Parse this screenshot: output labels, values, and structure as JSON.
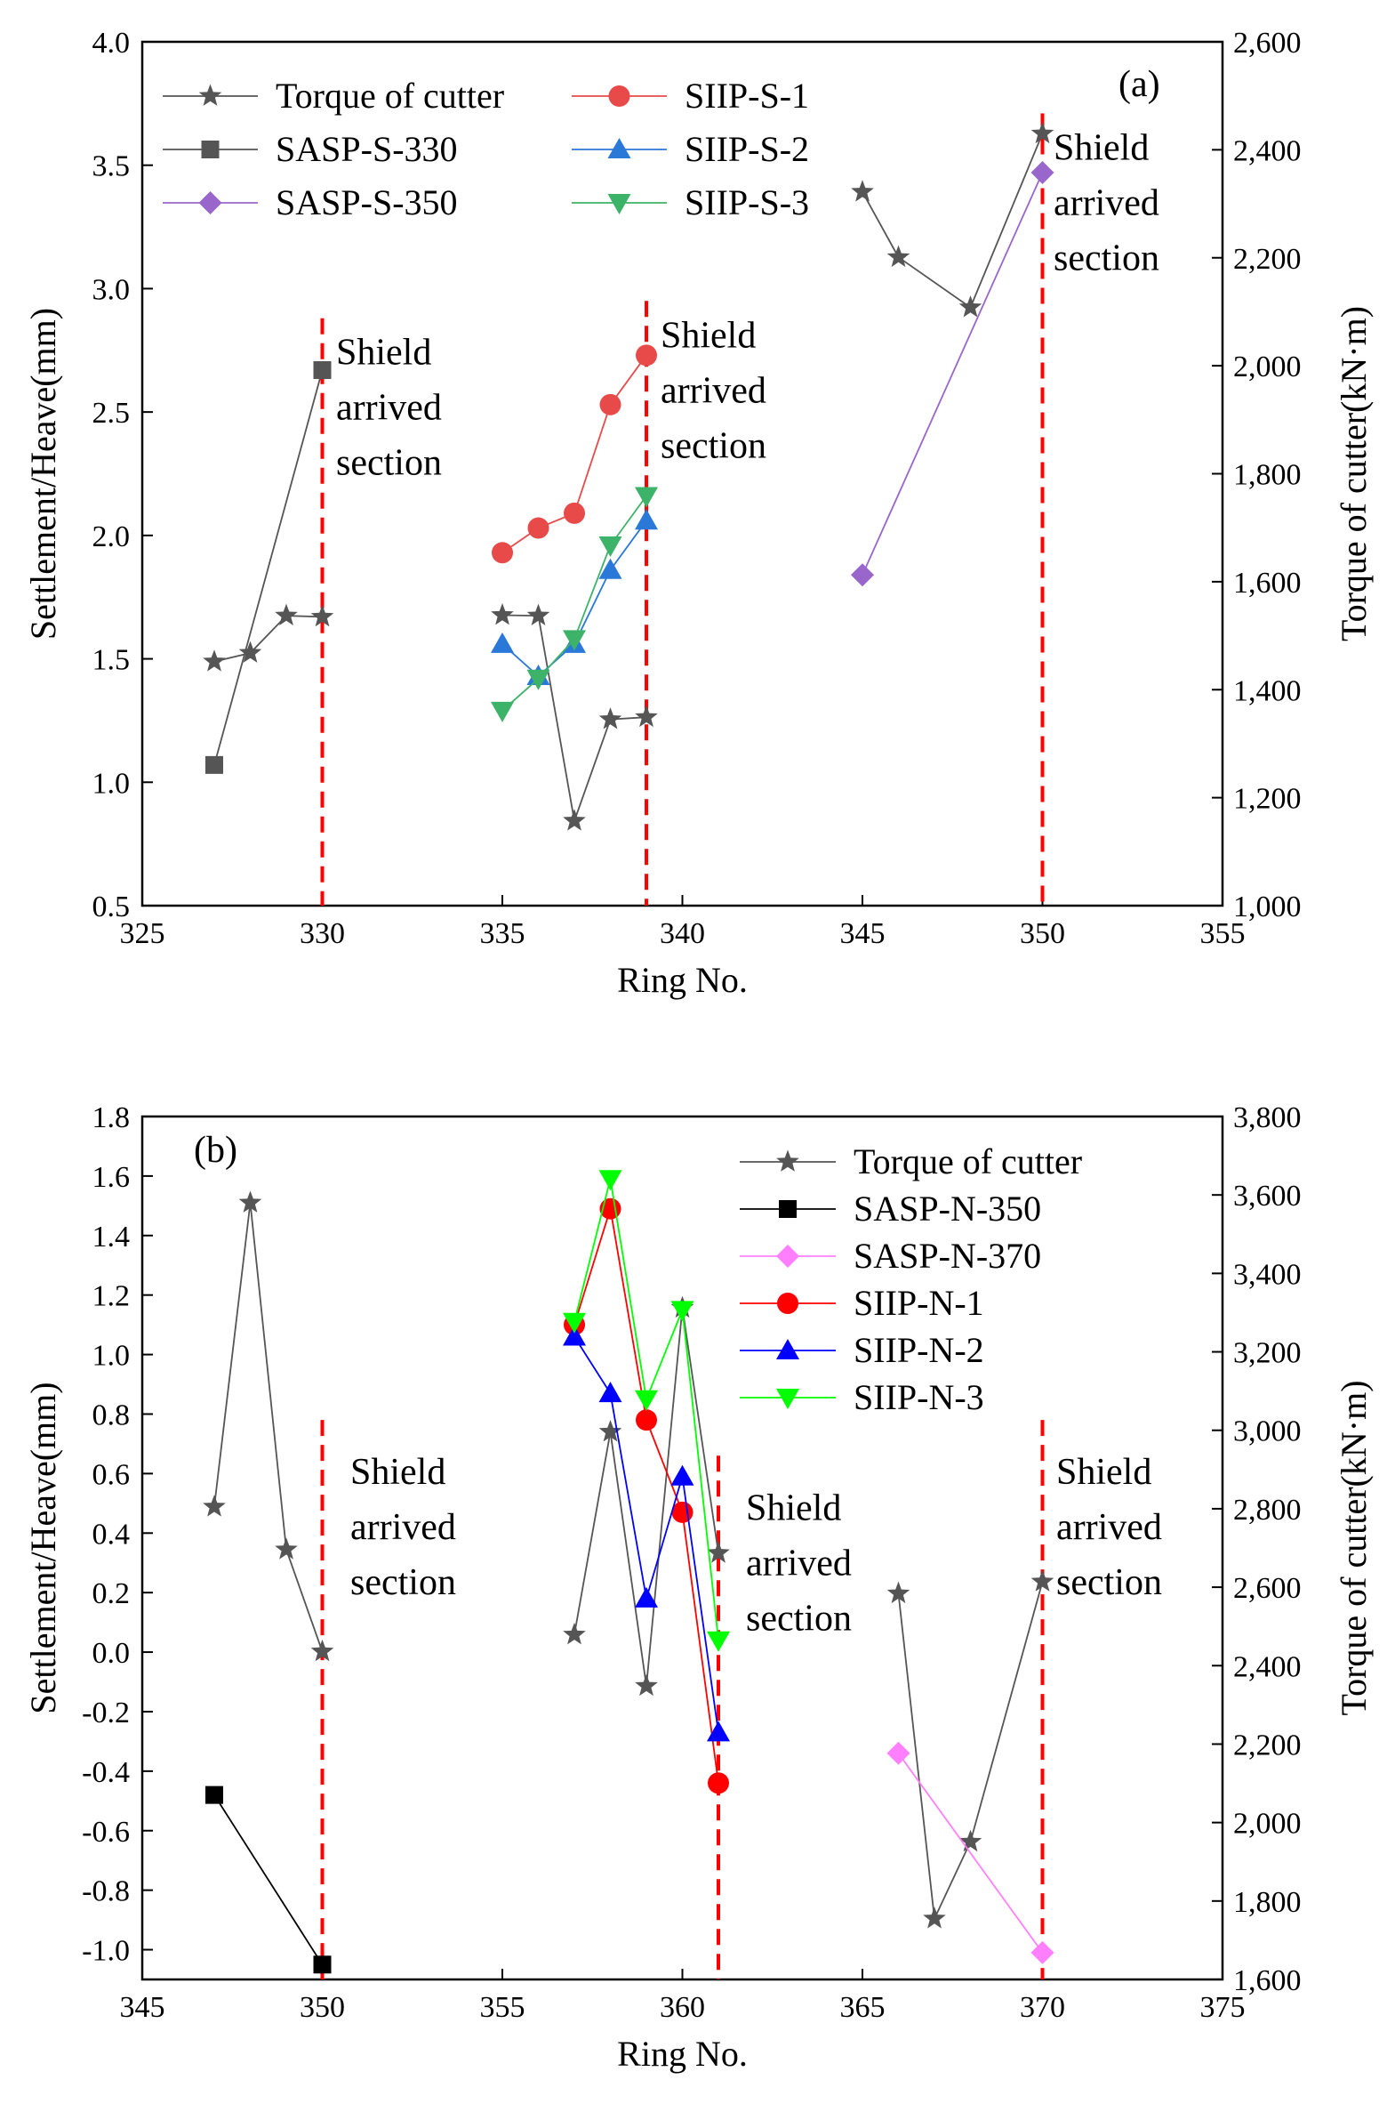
{
  "chart_data": [
    {
      "type": "line",
      "panel_label": "(a)",
      "xlabel": "Ring No.",
      "ylabel": "Settlement/Heave(mm)",
      "y2label": "Torque of cutter(kN·m)",
      "xlim": [
        325,
        355
      ],
      "ylim": [
        0.5,
        4.0
      ],
      "y2lim": [
        1000,
        2600
      ],
      "xticks": [
        "325",
        "330",
        "335",
        "340",
        "345",
        "350",
        "355"
      ],
      "yticks": [
        "0.5",
        "1.0",
        "1.5",
        "2.0",
        "2.5",
        "3.0",
        "3.5",
        "4.0"
      ],
      "y2ticks": [
        "1,000",
        "1,200",
        "1,400",
        "1,600",
        "1,800",
        "2,000",
        "2,200",
        "2,400",
        "2,600"
      ],
      "grid": false,
      "series": [
        {
          "name": "Torque of cutter",
          "axis": "y2",
          "marker": "star",
          "color": "#555555",
          "segments": [
            [
              [
                327,
                1452
              ],
              [
                328,
                1468
              ],
              [
                329,
                1537
              ],
              [
                330,
                1535
              ]
            ],
            [
              [
                335,
                1538
              ],
              [
                336,
                1537
              ],
              [
                337,
                1157
              ],
              [
                338,
                1345
              ],
              [
                339,
                1349
              ]
            ],
            [
              [
                345,
                2322
              ],
              [
                346,
                2201
              ],
              [
                348,
                2108
              ],
              [
                350,
                2430
              ]
            ]
          ]
        },
        {
          "name": "SASP-S-330",
          "axis": "y",
          "marker": "square",
          "color": "#555555",
          "segments": [
            [
              [
                327,
                1.07
              ],
              [
                330,
                2.67
              ]
            ]
          ]
        },
        {
          "name": "SASP-S-350",
          "axis": "y",
          "marker": "diamond",
          "color": "#9966cc",
          "segments": [
            [
              [
                345,
                1.84
              ],
              [
                350,
                3.47
              ]
            ]
          ]
        },
        {
          "name": "SIIP-S-1",
          "axis": "y",
          "marker": "circle",
          "color": "#e84a4a",
          "segments": [
            [
              [
                335,
                1.93
              ],
              [
                336,
                2.03
              ],
              [
                337,
                2.09
              ],
              [
                338,
                2.53
              ],
              [
                339,
                2.73
              ]
            ]
          ]
        },
        {
          "name": "SIIP-S-2",
          "axis": "y",
          "marker": "triangle-up",
          "color": "#2a78d8",
          "segments": [
            [
              [
                335,
                1.56
              ],
              [
                336,
                1.43
              ],
              [
                337,
                1.56
              ],
              [
                338,
                1.86
              ],
              [
                339,
                2.06
              ]
            ]
          ]
        },
        {
          "name": "SIIP-S-3",
          "axis": "y",
          "marker": "triangle-down",
          "color": "#3db36a",
          "segments": [
            [
              [
                335,
                1.29
              ],
              [
                336,
                1.42
              ],
              [
                337,
                1.58
              ],
              [
                338,
                1.96
              ],
              [
                339,
                2.16
              ]
            ]
          ]
        }
      ],
      "vlines": [
        {
          "x": 330,
          "ytop": 2.88,
          "label": [
            "Shield",
            "arrived",
            "section"
          ]
        },
        {
          "x": 339,
          "ytop": 2.95,
          "label": [
            "Shield",
            "arrived",
            "section"
          ]
        },
        {
          "x": 350,
          "ytop": 3.71,
          "label": [
            "Shield",
            "arrived",
            "section"
          ]
        }
      ],
      "legend": {
        "position": "top-left",
        "columns": [
          [
            "Torque of cutter",
            "SASP-S-330",
            "SASP-S-350"
          ],
          [
            "SIIP-S-1",
            "SIIP-S-2",
            "SIIP-S-3"
          ]
        ]
      }
    },
    {
      "type": "line",
      "panel_label": "(b)",
      "xlabel": "Ring No.",
      "ylabel": "Settlement/Heave(mm)",
      "y2label": "Torque of cutter(kN·m)",
      "xlim": [
        345,
        375
      ],
      "ylim": [
        -1.1,
        1.8
      ],
      "y2lim": [
        1600,
        3800
      ],
      "xticks": [
        "345",
        "350",
        "355",
        "360",
        "365",
        "370",
        "375"
      ],
      "yticks": [
        "-1.0",
        "-0.8",
        "-0.6",
        "-0.4",
        "-0.2",
        "0.0",
        "0.2",
        "0.4",
        "0.6",
        "0.8",
        "1.0",
        "1.2",
        "1.4",
        "1.6",
        "1.8"
      ],
      "y2ticks": [
        "1,600",
        "1,800",
        "2,000",
        "2,200",
        "2,400",
        "2,600",
        "2,800",
        "3,000",
        "3,200",
        "3,400",
        "3,600",
        "3,800"
      ],
      "grid": false,
      "series": [
        {
          "name": "Torque of cutter",
          "axis": "y2",
          "marker": "star",
          "color": "#555555",
          "segments": [
            [
              [
                347,
                2805
              ],
              [
                348,
                3580
              ],
              [
                349,
                2696
              ],
              [
                350,
                2436
              ]
            ],
            [
              [
                357,
                2479
              ],
              [
                358,
                2996
              ],
              [
                359,
                2348
              ],
              [
                360,
                3312
              ],
              [
                361,
                2687
              ]
            ],
            [
              [
                366,
                2584
              ],
              [
                367,
                1755
              ],
              [
                368,
                1951
              ],
              [
                370,
                2614
              ]
            ]
          ]
        },
        {
          "name": "SASP-N-350",
          "axis": "y",
          "marker": "square",
          "color": "#000000",
          "segments": [
            [
              [
                347,
                -0.48
              ],
              [
                350,
                -1.05
              ]
            ]
          ]
        },
        {
          "name": "SASP-N-370",
          "axis": "y",
          "marker": "diamond",
          "color": "#ff7fff",
          "segments": [
            [
              [
                366,
                -0.34
              ],
              [
                370,
                -1.01
              ]
            ]
          ]
        },
        {
          "name": "SIIP-N-1",
          "axis": "y",
          "marker": "circle",
          "color": "#ff0000",
          "segments": [
            [
              [
                357,
                1.1
              ],
              [
                358,
                1.49
              ],
              [
                359,
                0.78
              ],
              [
                360,
                0.47
              ],
              [
                361,
                -0.44
              ]
            ]
          ]
        },
        {
          "name": "SIIP-N-2",
          "axis": "y",
          "marker": "triangle-up",
          "color": "#0000ff",
          "segments": [
            [
              [
                357,
                1.06
              ],
              [
                358,
                0.87
              ],
              [
                359,
                0.18
              ],
              [
                360,
                0.59
              ],
              [
                361,
                -0.27
              ]
            ]
          ]
        },
        {
          "name": "SIIP-N-3",
          "axis": "y",
          "marker": "triangle-down",
          "color": "#00ff00",
          "segments": [
            [
              [
                357,
                1.11
              ],
              [
                358,
                1.59
              ],
              [
                359,
                0.85
              ],
              [
                360,
                1.15
              ],
              [
                361,
                0.04
              ]
            ]
          ]
        }
      ],
      "vlines": [
        {
          "x": 350,
          "ytop": 0.78,
          "label": [
            "Shield",
            "arrived",
            "section"
          ]
        },
        {
          "x": 361,
          "ytop": 0.66,
          "label": [
            "Shield",
            "arrived",
            "section"
          ]
        },
        {
          "x": 370,
          "ytop": 0.78,
          "label": [
            "Shield",
            "arrived",
            "section"
          ]
        }
      ],
      "legend": {
        "position": "top-right",
        "columns": [
          [
            "Torque of cutter",
            "SASP-N-350",
            "SASP-N-370",
            "SIIP-N-1",
            "SIIP-N-2",
            "SIIP-N-3"
          ]
        ]
      }
    }
  ]
}
